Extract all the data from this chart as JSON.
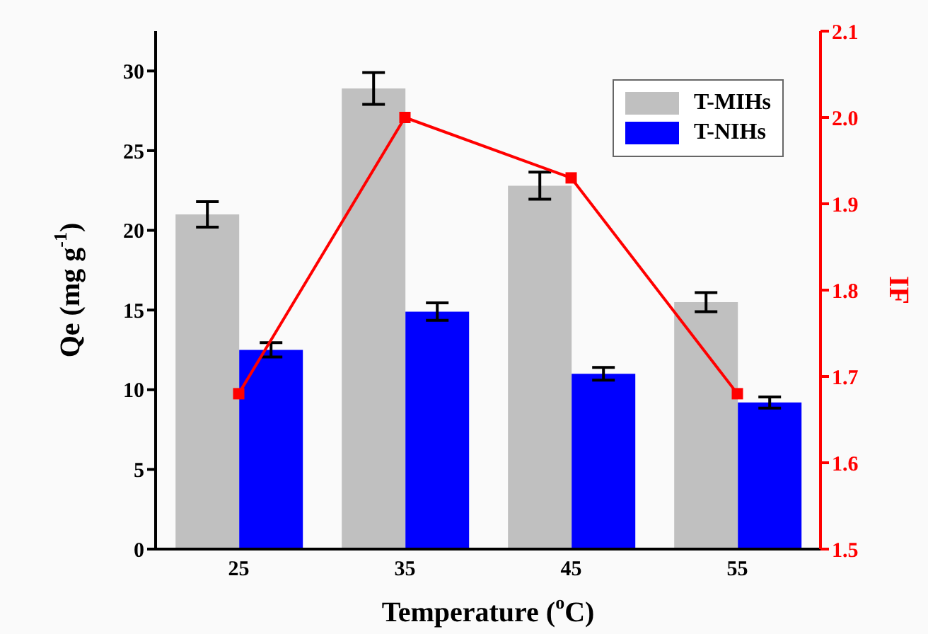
{
  "chart_data": {
    "type": "bar",
    "xlabel": "Temperature ($^{o}$C)",
    "ylabel": "Qe (mg g$^{-1}$)",
    "y2label": "IF",
    "categories": [
      "25",
      "35",
      "45",
      "55"
    ],
    "series": [
      {
        "name": "T-MIHs",
        "color": "#c0c0c0",
        "values": [
          21.0,
          28.9,
          22.8,
          15.5
        ],
        "errors": [
          0.8,
          1.0,
          0.85,
          0.6
        ]
      },
      {
        "name": "T-NIHs",
        "color": "#0000ff",
        "values": [
          12.5,
          14.9,
          11.0,
          9.2
        ],
        "errors": [
          0.45,
          0.55,
          0.4,
          0.35
        ]
      },
      {
        "type": "line",
        "axis": "y2",
        "color": "#ff0000",
        "values": [
          1.68,
          2.0,
          1.93,
          1.68
        ],
        "marker": "square"
      }
    ],
    "ylim": [
      0,
      32.5
    ],
    "yticks": [
      0,
      5,
      10,
      15,
      20,
      25,
      30
    ],
    "y2lim": [
      1.5,
      2.1
    ],
    "y2ticks": [
      1.5,
      1.6,
      1.7,
      1.8,
      1.9,
      {
        "value": 2,
        "label": "2.0"
      },
      2.1
    ],
    "legend": "top right",
    "grid": false
  }
}
